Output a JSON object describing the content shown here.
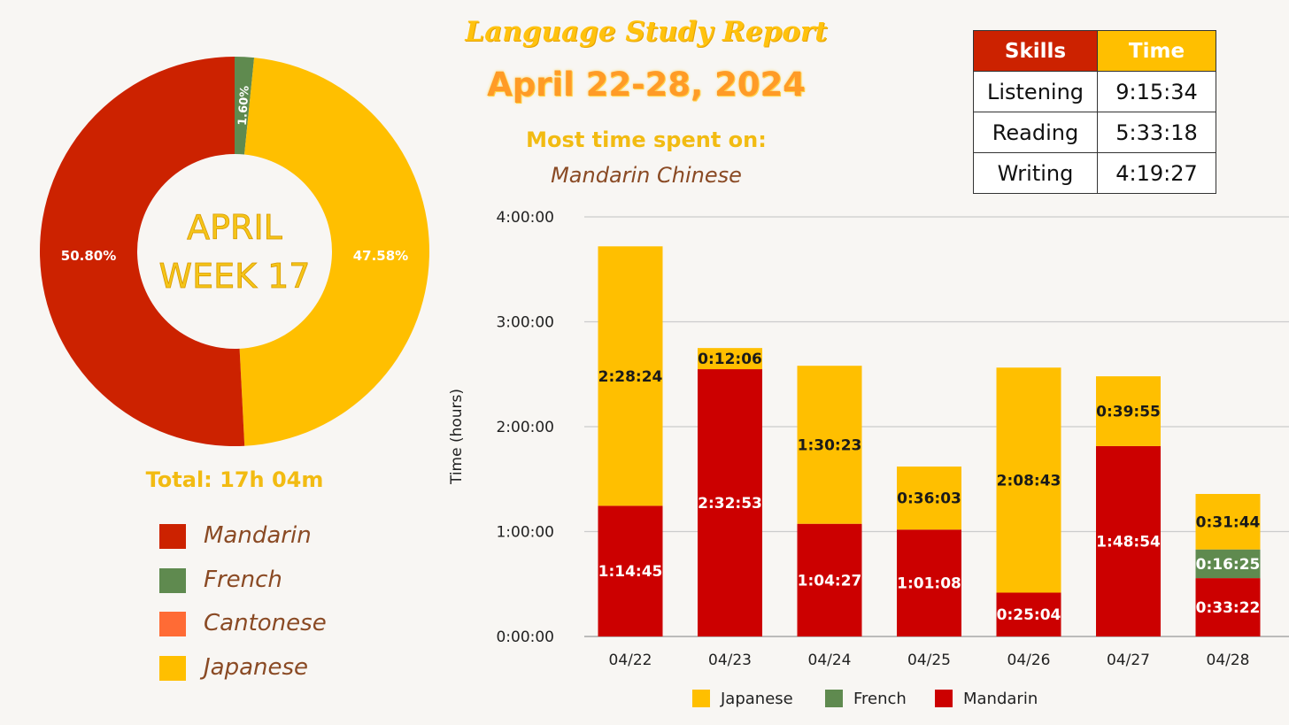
{
  "header": {
    "title": "Language Study Report",
    "subtitle": "April 22-28, 2024",
    "most_time_label": "Most time spent on:",
    "most_time_value": "Mandarin Chinese"
  },
  "skills_table": {
    "headers": [
      "Skills",
      "Time"
    ],
    "header_colors": [
      "#cc2200",
      "#ffbf00"
    ],
    "rows": [
      [
        "Listening",
        "9:15:34"
      ],
      [
        "Reading",
        "5:33:18"
      ],
      [
        "Writing",
        "4:19:27"
      ]
    ]
  },
  "donut": {
    "center_line1": "APRIL",
    "center_line2": "WEEK 17",
    "total_label": "Total: 17h 04m"
  },
  "legend": [
    {
      "label": "Mandarin",
      "color": "#cc2200"
    },
    {
      "label": "French",
      "color": "#5f8a4f"
    },
    {
      "label": "Cantonese",
      "color": "#ff6b35"
    },
    {
      "label": "Japanese",
      "color": "#ffbf00"
    }
  ],
  "chart_data": [
    {
      "type": "pie",
      "slices": [
        {
          "label": "Mandarin",
          "value": 50.8,
          "display": "50.80%",
          "color": "#cc2200"
        },
        {
          "label": "French",
          "value": 1.6,
          "display": "1.60%",
          "color": "#5f8a4f"
        },
        {
          "label": "Cantonese",
          "value": 0.0,
          "display": "",
          "color": "#ff6b35"
        },
        {
          "label": "Japanese",
          "value": 47.58,
          "display": "47.58%",
          "color": "#ffbf00"
        }
      ]
    },
    {
      "type": "bar",
      "stacked": true,
      "categories": [
        "04/22",
        "04/23",
        "04/24",
        "04/25",
        "04/26",
        "04/27",
        "04/28"
      ],
      "ylabel": "Time (hours)",
      "ylim": [
        0,
        4
      ],
      "yticks": [
        "0:00:00",
        "1:00:00",
        "2:00:00",
        "3:00:00",
        "4:00:00"
      ],
      "legend_position": "bottom",
      "series": [
        {
          "name": "Mandarin",
          "color": "#cc0000",
          "values": [
            1.2458,
            2.5481,
            1.0742,
            1.0189,
            0.4178,
            1.815,
            0.5561
          ],
          "labels": [
            "1:14:45",
            "2:32:53",
            "1:04:27",
            "1:01:08",
            "0:25:04",
            "1:48:54",
            "0:33:22"
          ]
        },
        {
          "name": "French",
          "color": "#5f8a4f",
          "values": [
            0,
            0,
            0,
            0,
            0,
            0,
            0.2736
          ],
          "labels": [
            "",
            "",
            "",
            "",
            "",
            "",
            "0:16:25"
          ]
        },
        {
          "name": "Japanese",
          "color": "#ffbf00",
          "values": [
            2.4733,
            0.2017,
            1.5064,
            0.6008,
            2.1453,
            0.6653,
            0.5289
          ],
          "labels": [
            "2:28:24",
            "0:12:06",
            "1:30:23",
            "0:36:03",
            "2:08:43",
            "0:39:55",
            "0:31:44"
          ]
        }
      ],
      "legend_order": [
        "Japanese",
        "French",
        "Mandarin"
      ]
    }
  ]
}
